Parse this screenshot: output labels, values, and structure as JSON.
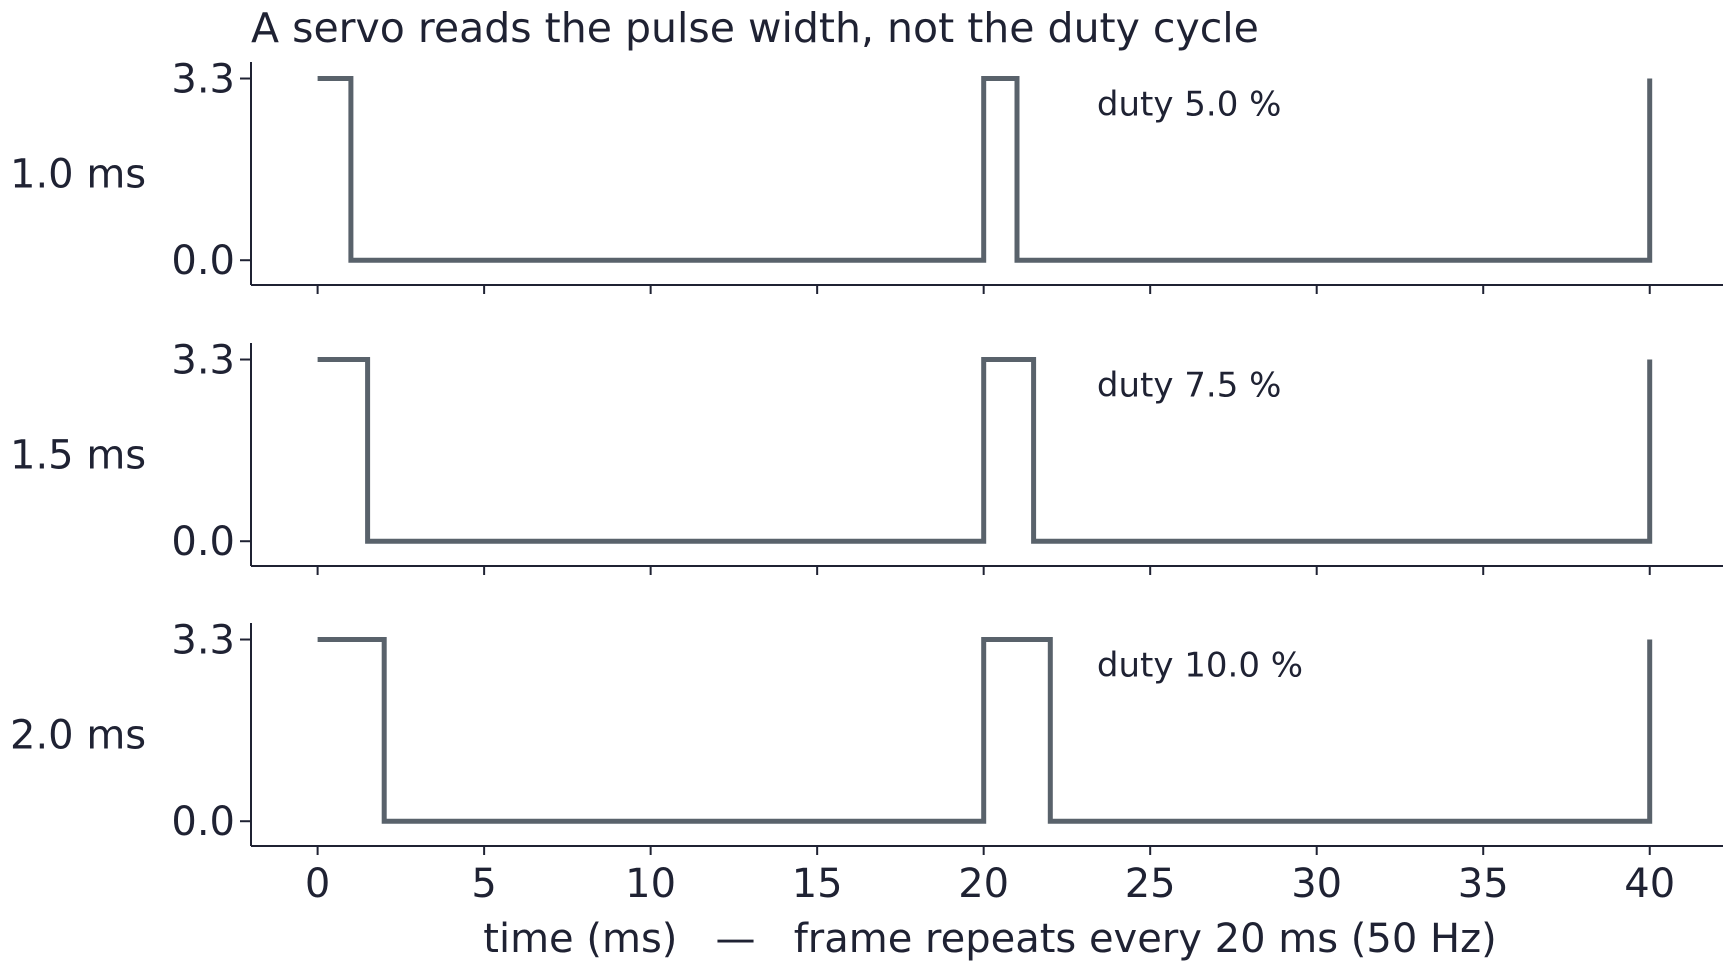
{
  "chart_data": {
    "type": "line",
    "title": "A servo reads the pulse width, not the duty cycle",
    "xlabel": "time (ms)   —   frame repeats every 20 ms (50 Hz)",
    "xlim": [
      -2,
      42.2
    ],
    "ylim": [
      -0.45,
      3.6
    ],
    "x_ticks": [
      0,
      5,
      10,
      15,
      20,
      25,
      30,
      35,
      40
    ],
    "x_tick_labels": [
      "0",
      "5",
      "10",
      "15",
      "20",
      "25",
      "30",
      "35",
      "40"
    ],
    "y_ticks": [
      0.0,
      3.3
    ],
    "y_tick_labels": [
      "0.0",
      "3.3"
    ],
    "frame_period_ms": 20,
    "total_time_ms": 40,
    "high_level": 3.3,
    "line_color": "#59626b",
    "grid": false,
    "panels": [
      {
        "label": "1.0 ms",
        "pulse_width_ms": 1.0,
        "annotation": "duty 5.0 %",
        "x": [
          0,
          1.0,
          1.0,
          20,
          20,
          21.0,
          21.0,
          40,
          40
        ],
        "y": [
          3.3,
          3.3,
          0,
          0,
          3.3,
          3.3,
          0,
          0,
          3.3
        ]
      },
      {
        "label": "1.5 ms",
        "pulse_width_ms": 1.5,
        "annotation": "duty 7.5 %",
        "x": [
          0,
          1.5,
          1.5,
          20,
          20,
          21.5,
          21.5,
          40,
          40
        ],
        "y": [
          3.3,
          3.3,
          0,
          0,
          3.3,
          3.3,
          0,
          0,
          3.3
        ]
      },
      {
        "label": "2.0 ms",
        "pulse_width_ms": 2.0,
        "annotation": "duty 10.0 %",
        "x": [
          0,
          2.0,
          2.0,
          20,
          20,
          22.0,
          22.0,
          40,
          40
        ],
        "y": [
          3.3,
          3.3,
          0,
          0,
          3.3,
          3.3,
          0,
          0,
          3.3
        ]
      }
    ]
  }
}
